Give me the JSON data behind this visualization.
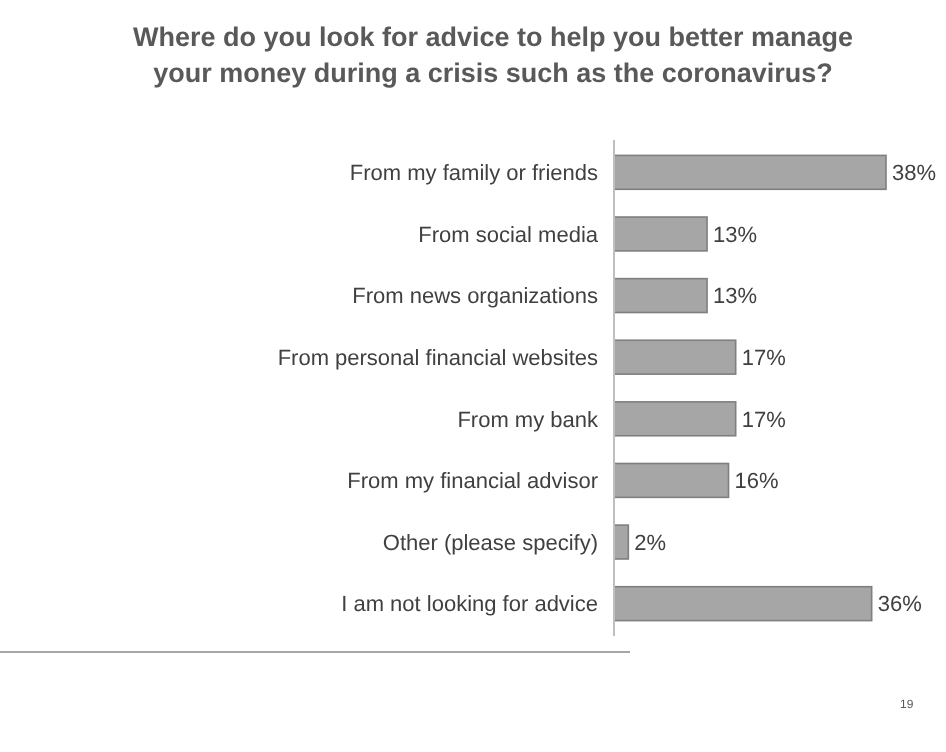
{
  "chart_data": {
    "type": "bar",
    "orientation": "horizontal",
    "title": "Where do you look for advice to help you better manage your money during a crisis such as the coronavirus?",
    "categories": [
      "From my family or friends",
      "From social media",
      "From news organizations",
      "From personal financial websites",
      "From my bank",
      "From my financial advisor",
      "Other (please specify)",
      "I am not looking for advice"
    ],
    "values": [
      38,
      13,
      13,
      17,
      17,
      16,
      2,
      36
    ],
    "value_labels": [
      "38%",
      "13%",
      "13%",
      "17%",
      "17%",
      "16%",
      "2%",
      "36%"
    ],
    "color": "#a6a6a6",
    "annotations": [
      "19"
    ]
  }
}
